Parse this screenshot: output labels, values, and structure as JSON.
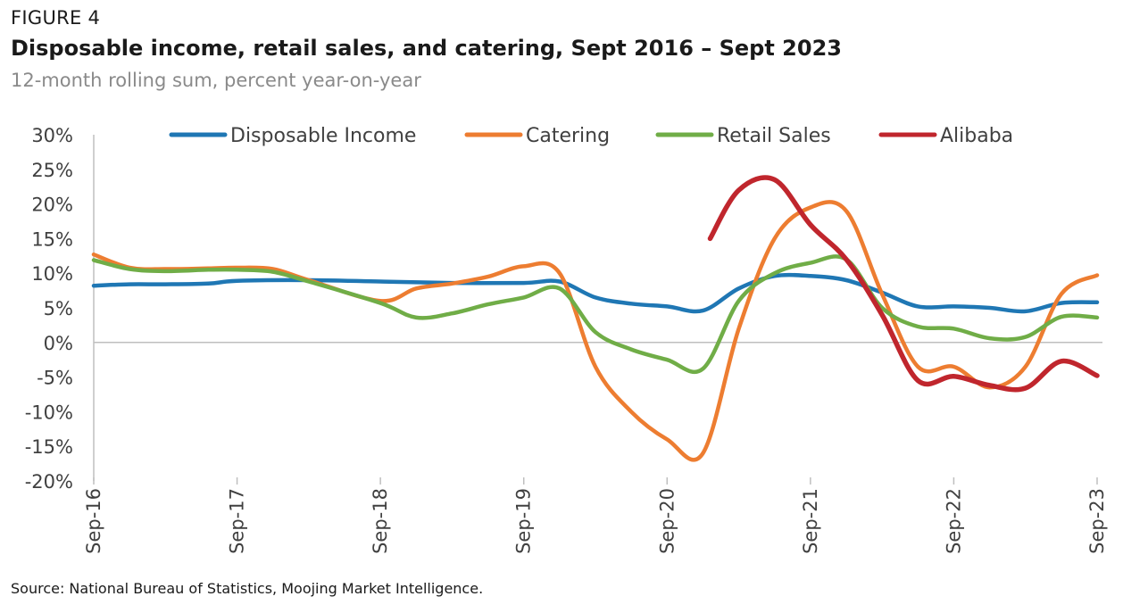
{
  "figure_label": "FIGURE 4",
  "source": "Source: National Bureau of Statistics, Moojing Market Intelligence.",
  "colors": {
    "disposable_income": "#1f77b4",
    "catering": "#ed7d31",
    "retail_sales": "#70ad47",
    "alibaba": "#c0262d",
    "axis": "#bfbfbf",
    "text": "#404040"
  },
  "chart_data": {
    "type": "line",
    "title": "Disposable income, retail sales, and catering, Sept 2016 – Sept 2023",
    "subtitle": "12-month rolling sum, percent year-on-year",
    "xlabel": "",
    "ylabel": "",
    "ylim": [
      -20,
      30
    ],
    "yticks": [
      30,
      25,
      20,
      15,
      10,
      5,
      0,
      -5,
      -10,
      -15,
      -20
    ],
    "ytick_labels": [
      "30%",
      "25%",
      "20%",
      "15%",
      "10%",
      "5%",
      "0%",
      "-5%",
      "-10%",
      "-15%",
      "-20%"
    ],
    "xlim": [
      0,
      7
    ],
    "xticks": [
      0,
      1,
      2,
      3,
      4,
      5,
      6,
      7
    ],
    "xtick_labels": [
      "Sep-16",
      "Sep-17",
      "Sep-18",
      "Sep-19",
      "Sep-20",
      "Sep-21",
      "Sep-22",
      "Sep-23"
    ],
    "grid": false,
    "legend_position": "top",
    "series": [
      {
        "name": "Disposable Income",
        "color_key": "disposable_income",
        "points": [
          [
            0,
            8.2
          ],
          [
            0.25,
            8.4
          ],
          [
            0.5,
            8.4
          ],
          [
            0.8,
            8.5
          ],
          [
            1.0,
            8.9
          ],
          [
            1.5,
            9.0
          ],
          [
            2.0,
            8.8
          ],
          [
            2.5,
            8.6
          ],
          [
            3.0,
            8.6
          ],
          [
            3.25,
            8.8
          ],
          [
            3.5,
            6.5
          ],
          [
            3.75,
            5.6
          ],
          [
            4.0,
            5.2
          ],
          [
            4.25,
            4.6
          ],
          [
            4.5,
            7.8
          ],
          [
            4.75,
            9.6
          ],
          [
            5.0,
            9.6
          ],
          [
            5.25,
            9.0
          ],
          [
            5.5,
            7.2
          ],
          [
            5.75,
            5.2
          ],
          [
            6.0,
            5.2
          ],
          [
            6.25,
            5.0
          ],
          [
            6.5,
            4.5
          ],
          [
            6.75,
            5.7
          ],
          [
            7.0,
            5.8
          ]
        ]
      },
      {
        "name": "Catering",
        "color_key": "catering",
        "points": [
          [
            0,
            12.7
          ],
          [
            0.25,
            10.8
          ],
          [
            0.5,
            10.6
          ],
          [
            0.8,
            10.7
          ],
          [
            1.0,
            10.8
          ],
          [
            1.25,
            10.6
          ],
          [
            1.5,
            9.0
          ],
          [
            2.0,
            6.0
          ],
          [
            2.25,
            7.8
          ],
          [
            2.5,
            8.5
          ],
          [
            2.75,
            9.5
          ],
          [
            3.0,
            11.0
          ],
          [
            3.25,
            10.0
          ],
          [
            3.5,
            -3.5
          ],
          [
            3.75,
            -10.0
          ],
          [
            4.0,
            -14.0
          ],
          [
            4.25,
            -16.0
          ],
          [
            4.5,
            2.0
          ],
          [
            4.75,
            15.0
          ],
          [
            5.0,
            19.5
          ],
          [
            5.25,
            19.0
          ],
          [
            5.5,
            7.0
          ],
          [
            5.75,
            -3.5
          ],
          [
            6.0,
            -3.5
          ],
          [
            6.25,
            -6.5
          ],
          [
            6.5,
            -3.5
          ],
          [
            6.75,
            7.0
          ],
          [
            7.0,
            9.7
          ]
        ]
      },
      {
        "name": "Retail Sales",
        "color_key": "retail_sales",
        "points": [
          [
            0,
            11.9
          ],
          [
            0.25,
            10.6
          ],
          [
            0.5,
            10.3
          ],
          [
            0.8,
            10.5
          ],
          [
            1.0,
            10.5
          ],
          [
            1.25,
            10.2
          ],
          [
            1.5,
            8.8
          ],
          [
            2.0,
            5.7
          ],
          [
            2.25,
            3.6
          ],
          [
            2.5,
            4.2
          ],
          [
            2.75,
            5.5
          ],
          [
            3.0,
            6.5
          ],
          [
            3.25,
            7.8
          ],
          [
            3.5,
            1.5
          ],
          [
            3.75,
            -1.0
          ],
          [
            4.0,
            -2.5
          ],
          [
            4.25,
            -3.8
          ],
          [
            4.5,
            6.0
          ],
          [
            4.75,
            10.0
          ],
          [
            5.0,
            11.5
          ],
          [
            5.25,
            12.0
          ],
          [
            5.5,
            5.0
          ],
          [
            5.75,
            2.3
          ],
          [
            6.0,
            2.0
          ],
          [
            6.25,
            0.6
          ],
          [
            6.5,
            0.8
          ],
          [
            6.75,
            3.7
          ],
          [
            7.0,
            3.6
          ]
        ]
      },
      {
        "name": "Alibaba",
        "color_key": "alibaba",
        "points": [
          [
            4.3,
            15.0
          ],
          [
            4.5,
            22.0
          ],
          [
            4.75,
            23.5
          ],
          [
            5.0,
            17.0
          ],
          [
            5.25,
            12.0
          ],
          [
            5.5,
            4.0
          ],
          [
            5.75,
            -5.5
          ],
          [
            6.0,
            -4.9
          ],
          [
            6.25,
            -6.2
          ],
          [
            6.5,
            -6.6
          ],
          [
            6.75,
            -2.7
          ],
          [
            7.0,
            -4.8
          ]
        ]
      }
    ]
  }
}
